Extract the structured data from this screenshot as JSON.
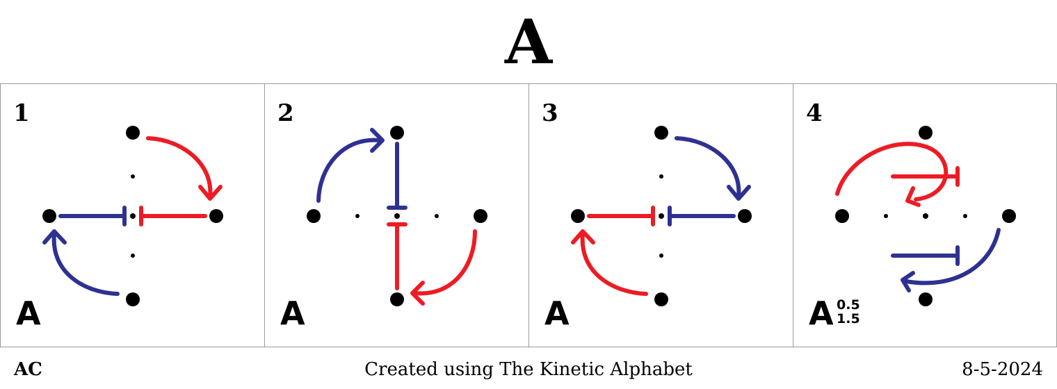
{
  "title": "A",
  "panels": [
    {
      "number": "1",
      "letter": "A",
      "turns": [
        "",
        ""
      ]
    },
    {
      "number": "2",
      "letter": "A",
      "turns": [
        "",
        ""
      ]
    },
    {
      "number": "3",
      "letter": "A",
      "turns": [
        "",
        ""
      ]
    },
    {
      "number": "4",
      "letter": "A",
      "turns": [
        "0.5",
        "1.5"
      ]
    }
  ],
  "colors": {
    "blue": "#2e3192",
    "red": "#ed1c24",
    "dot": "#000000"
  },
  "footer": {
    "left": "AC",
    "center": "Created using The Kinetic Alphabet",
    "right": "8-5-2024"
  }
}
